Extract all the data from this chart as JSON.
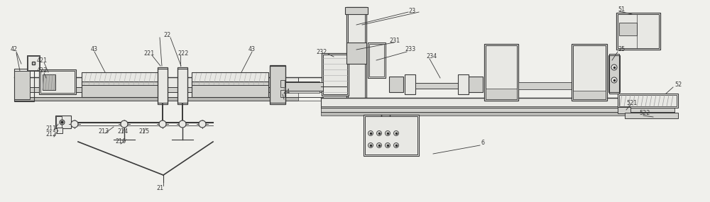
{
  "bg_color": "#f0f0ec",
  "line_color": "#3a3a3a",
  "lw": 0.8,
  "fig_width": 10.0,
  "fig_height": 2.85,
  "dpi": 100
}
